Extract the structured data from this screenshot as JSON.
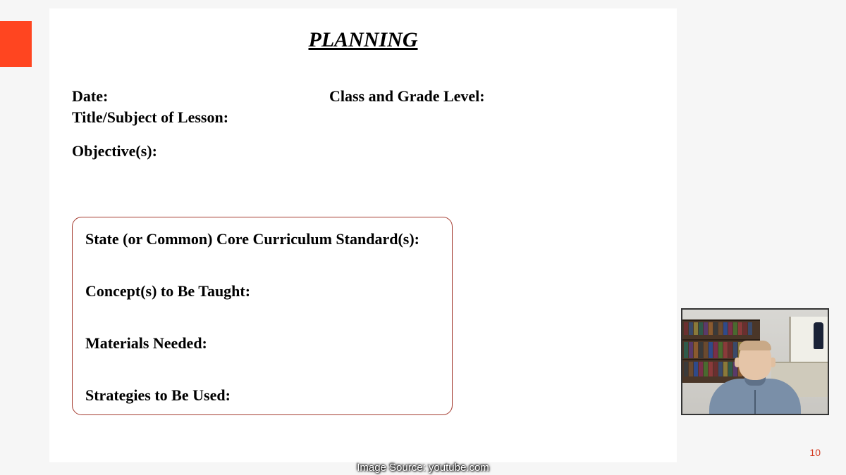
{
  "accent_color": "#ff4520",
  "slide_bg": "#ffffff",
  "page_bg": "#f6f6f6",
  "box_border_color": "#a43b2f",
  "page_number_color": "#d33b22",
  "slide": {
    "title": "PLANNING",
    "fields": {
      "date": "Date:",
      "class_grade": "Class and Grade Level:",
      "title_subject": "Title/Subject of Lesson:",
      "objectives": "Objective(s):"
    },
    "boxed": {
      "standards": "State (or Common) Core Curriculum Standard(s):",
      "concepts": "Concept(s) to Be Taught:",
      "materials": "Materials Needed:",
      "strategies": "Strategies to Be Used:"
    },
    "page_number": "10"
  },
  "webcam": {
    "book_colors": [
      "#6a2f2f",
      "#3a4a6a",
      "#8a7a3a",
      "#2f5a4a",
      "#5a3a6a",
      "#8a5a2f",
      "#3a3a3a",
      "#6a4a2f",
      "#2f4a8a",
      "#7a2f4a",
      "#4a6a2f",
      "#8a3a3a"
    ]
  },
  "caption": "Image Source: youtube.com"
}
